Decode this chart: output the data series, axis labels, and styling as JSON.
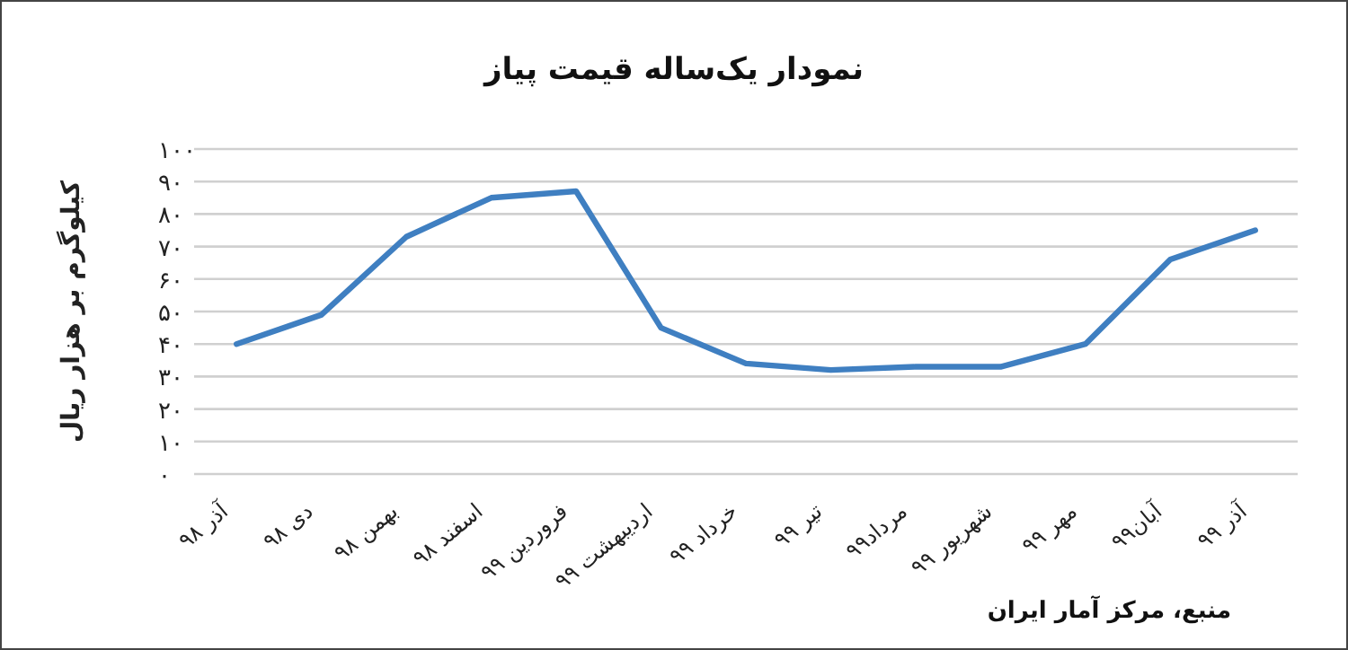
{
  "chart_data": {
    "type": "line",
    "title": "نمودار یک‌ساله قیمت پیاز",
    "ylabel": "کیلوگرم بر هزار ریال",
    "categories": [
      "آذر ۹۸",
      "دی ۹۸",
      "بهمن ۹۸",
      "اسفند ۹۸",
      "فروردین ۹۹",
      "اردیبهشت ۹۹",
      "خرداد ۹۹",
      "تیر ۹۹",
      "مرداد۹۹",
      "شهریور ۹۹",
      "مهر ۹۹",
      "آبان۹۹",
      "آذر ۹۹"
    ],
    "series": [
      {
        "color": "#3f7fc1",
        "values": [
          40,
          49,
          73,
          85,
          87,
          45,
          34,
          32,
          33,
          33,
          40,
          66,
          75
        ]
      }
    ],
    "ylim": [
      0,
      100
    ],
    "yticks": [
      {
        "value": 0,
        "label": "۰"
      },
      {
        "value": 10,
        "label": "۱۰"
      },
      {
        "value": 20,
        "label": "۲۰"
      },
      {
        "value": 30,
        "label": "۳۰"
      },
      {
        "value": 40,
        "label": "۴۰"
      },
      {
        "value": 50,
        "label": "۵۰"
      },
      {
        "value": 60,
        "label": "۶۰"
      },
      {
        "value": 70,
        "label": "۷۰"
      },
      {
        "value": 80,
        "label": "۸۰"
      },
      {
        "value": 90,
        "label": "۹۰"
      },
      {
        "value": 100,
        "label": "۱۰۰"
      }
    ],
    "grid": "y",
    "marker": "none",
    "line_style": "solid",
    "annotations": [
      "منبع، مرکز آمار ایران"
    ]
  }
}
